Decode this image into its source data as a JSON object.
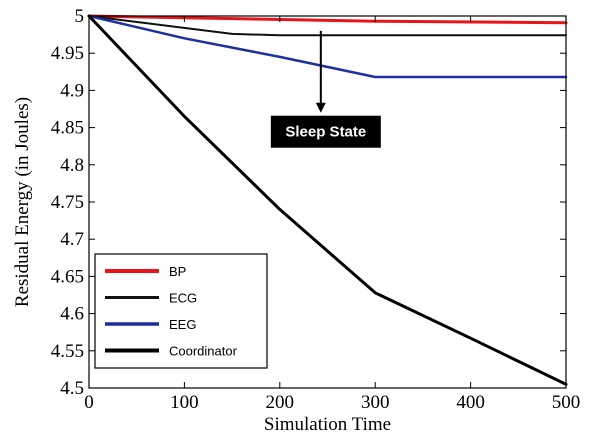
{
  "chart_data": {
    "type": "line",
    "title": "",
    "xlabel": "Simulation Time",
    "ylabel": "Residual Energy (in Joules)",
    "xlim": [
      0,
      500
    ],
    "ylim": [
      4.5,
      5.0
    ],
    "xticks": [
      0,
      100,
      200,
      300,
      400,
      500
    ],
    "yticks": [
      4.5,
      4.55,
      4.6,
      4.65,
      4.7,
      4.75,
      4.8,
      4.85,
      4.9,
      4.95,
      5.0
    ],
    "xtick_labels": [
      "0",
      "100",
      "200",
      "300",
      "400",
      "500"
    ],
    "ytick_labels": [
      "4.5",
      "4.55",
      "4.6",
      "4.65",
      "4.7",
      "4.75",
      "4.8",
      "4.85",
      "4.9",
      "4.95",
      "5"
    ],
    "grid": false,
    "legend_position": "bottom-left",
    "series": [
      {
        "name": "BP",
        "color": "#e8141a",
        "width": 3,
        "x": [
          0,
          300,
          500
        ],
        "y": [
          5.0,
          4.993,
          4.991
        ]
      },
      {
        "name": "ECG",
        "color": "#111111",
        "width": 2,
        "x": [
          0,
          150,
          200,
          500
        ],
        "y": [
          5.0,
          4.976,
          4.974,
          4.974
        ]
      },
      {
        "name": "EEG",
        "color": "#1f2fa0",
        "width": 2.5,
        "x": [
          0,
          100,
          200,
          300,
          500
        ],
        "y": [
          5.0,
          4.97,
          4.945,
          4.918,
          4.918
        ]
      },
      {
        "name": "Coordinator",
        "color": "#000000",
        "width": 3,
        "x": [
          0,
          100,
          200,
          300,
          400,
          500
        ],
        "y": [
          5.0,
          4.865,
          4.74,
          4.628,
          4.567,
          4.505
        ]
      }
    ],
    "annotations": [
      {
        "text": "Sleep State",
        "arrow_x": 243,
        "arrow_y_start": 4.98,
        "arrow_y_end": 4.87
      }
    ]
  }
}
